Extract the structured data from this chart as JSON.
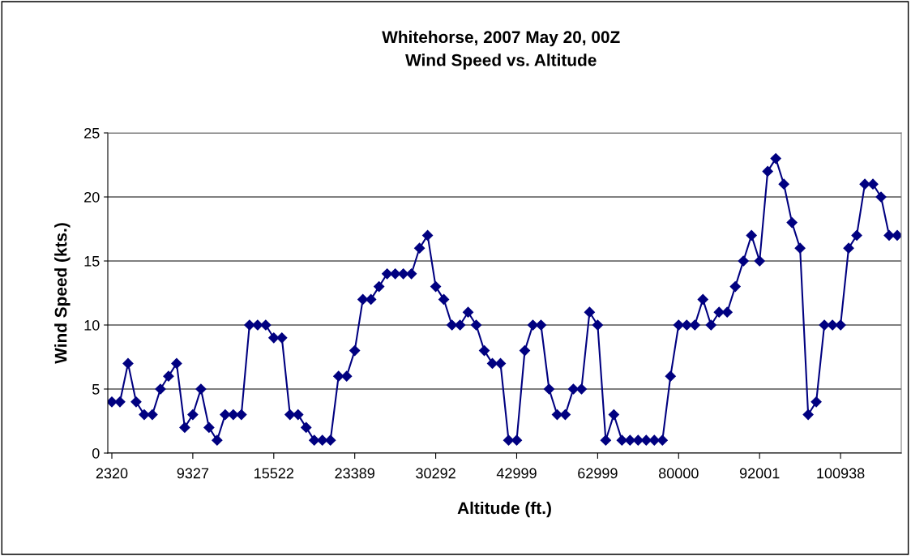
{
  "chart_data": {
    "type": "line",
    "title": "Whitehorse, 2007 May 20, 00Z\nWind Speed vs. Altitude",
    "xlabel": "Altitude (ft.)",
    "ylabel": "Wind Speed (kts.)",
    "categories": [
      "2320",
      null,
      null,
      null,
      null,
      null,
      null,
      null,
      null,
      null,
      "9327",
      null,
      null,
      null,
      null,
      null,
      null,
      null,
      null,
      null,
      "15522",
      null,
      null,
      null,
      null,
      null,
      null,
      null,
      null,
      null,
      "23389",
      null,
      null,
      null,
      null,
      null,
      null,
      null,
      null,
      null,
      "30292",
      null,
      null,
      null,
      null,
      null,
      null,
      null,
      null,
      null,
      "42999",
      null,
      null,
      null,
      null,
      null,
      null,
      null,
      null,
      null,
      "62999",
      null,
      null,
      null,
      null,
      null,
      null,
      null,
      null,
      null,
      "80000",
      null,
      null,
      null,
      null,
      null,
      null,
      null,
      null,
      null,
      "92001",
      null,
      null,
      null,
      null,
      null,
      null,
      null,
      null,
      null,
      "100938",
      null,
      null,
      null,
      null,
      null,
      null,
      null
    ],
    "series": [
      {
        "color": "#000080",
        "values": [
          4,
          4,
          7,
          4,
          3,
          3,
          5,
          6,
          7,
          2,
          3,
          5,
          2,
          1,
          3,
          3,
          3,
          10,
          10,
          10,
          9,
          9,
          3,
          3,
          2,
          1,
          1,
          1,
          6,
          6,
          8,
          12,
          12,
          13,
          14,
          14,
          14,
          14,
          16,
          17,
          13,
          12,
          10,
          10,
          11,
          10,
          8,
          7,
          7,
          1,
          1,
          8,
          10,
          10,
          5,
          3,
          3,
          5,
          5,
          11,
          10,
          1,
          3,
          1,
          1,
          1,
          1,
          1,
          1,
          6,
          10,
          10,
          10,
          12,
          10,
          11,
          11,
          13,
          15,
          17,
          15,
          22,
          23,
          21,
          18,
          16,
          3,
          4,
          10,
          10,
          10,
          16,
          17,
          21,
          21,
          20,
          17,
          17
        ]
      }
    ],
    "ylim": [
      0,
      25
    ],
    "yticks": [
      0,
      5,
      10,
      15,
      20,
      25
    ],
    "grid": "y",
    "marker": "diamond",
    "line_style": "solid",
    "legend": false
  }
}
